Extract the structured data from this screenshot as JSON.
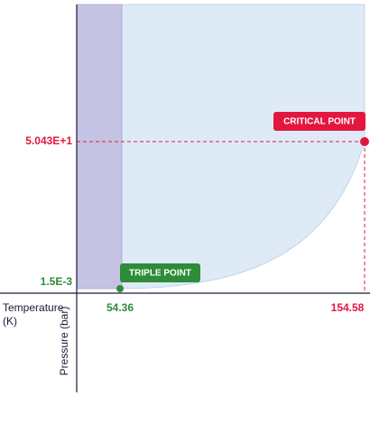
{
  "axes": {
    "x_label": [
      "Temperature",
      "(K)"
    ],
    "y_label": "Pressure (bar)"
  },
  "triple_point": {
    "label": "TRIPLE POINT",
    "temperature": "54.36",
    "pressure": "1.5E-3"
  },
  "critical_point": {
    "label": "CRITICAL POINT",
    "temperature": "154.58",
    "pressure": "5.043E+1"
  }
}
